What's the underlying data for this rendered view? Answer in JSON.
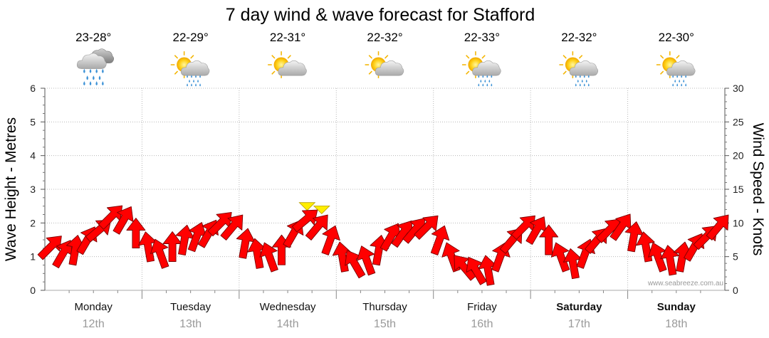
{
  "chart_data": {
    "type": "line",
    "title": "7 day wind & wave forecast for Stafford",
    "ylabel_left": "Wave Height - Metres",
    "ylabel_right": "Wind Speed - Knots",
    "ylim_left": [
      0,
      6
    ],
    "ylim_right": [
      0,
      30
    ],
    "yticks_left": [
      "0",
      "1",
      "2",
      "3",
      "4",
      "5",
      "6"
    ],
    "yticks_right": [
      "0",
      "5",
      "10",
      "15",
      "20",
      "25",
      "30"
    ],
    "watermark": "www.seabreeze.com.au",
    "days": [
      {
        "name": "Monday",
        "date": "12th",
        "bold": false,
        "temp": "23-28°",
        "icon": "rain-cloud-icon"
      },
      {
        "name": "Tuesday",
        "date": "13th",
        "bold": false,
        "temp": "22-29°",
        "icon": "sun-cloud-rain-icon"
      },
      {
        "name": "Wednesday",
        "date": "14th",
        "bold": false,
        "temp": "22-31°",
        "icon": "sun-cloud-icon"
      },
      {
        "name": "Thursday",
        "date": "15th",
        "bold": false,
        "temp": "22-32°",
        "icon": "sun-cloud-icon"
      },
      {
        "name": "Friday",
        "date": "16th",
        "bold": false,
        "temp": "22-33°",
        "icon": "sun-cloud-rain-icon"
      },
      {
        "name": "Saturday",
        "date": "17th",
        "bold": true,
        "temp": "22-32°",
        "icon": "sun-cloud-rain-icon"
      },
      {
        "name": "Sunday",
        "date": "18th",
        "bold": true,
        "temp": "22-30°",
        "icon": "sun-cloud-rain-icon"
      }
    ],
    "series": [
      {
        "name": "Wind Speed (knots)",
        "color": "#ff0000",
        "x": [
          0.0,
          0.125,
          0.25,
          0.375,
          0.5,
          0.625,
          0.75,
          0.875,
          1.0,
          1.125,
          1.25,
          1.375,
          1.5,
          1.625,
          1.75,
          1.875,
          2.0,
          2.125,
          2.25,
          2.375,
          2.5,
          2.625,
          2.75,
          2.875,
          3.0,
          3.125,
          3.25,
          3.375,
          3.5,
          3.625,
          3.75,
          3.875,
          4.0,
          4.125,
          4.25,
          4.375,
          4.5,
          4.625,
          4.75,
          4.875,
          5.0,
          5.125,
          5.25,
          5.375,
          5.5,
          5.625,
          5.75,
          5.875,
          6.0,
          6.125,
          6.25,
          6.375,
          6.5,
          6.625,
          6.75,
          6.875
        ],
        "values": [
          6.5,
          5.5,
          6.0,
          7.5,
          9.0,
          11.0,
          10.5,
          8.5,
          6.5,
          5.5,
          6.5,
          7.5,
          8.0,
          8.5,
          10.0,
          9.5,
          7.0,
          5.5,
          5.0,
          6.0,
          8.5,
          10.5,
          9.5,
          7.5,
          5.0,
          4.0,
          4.5,
          6.0,
          8.0,
          8.5,
          9.0,
          9.5,
          7.5,
          5.0,
          3.5,
          3.0,
          3.0,
          5.0,
          7.5,
          9.5,
          9.0,
          7.5,
          5.0,
          4.0,
          5.5,
          7.5,
          9.0,
          9.5,
          8.0,
          6.5,
          5.0,
          4.5,
          5.0,
          6.5,
          8.0,
          9.5
        ],
        "direction_deg": [
          45,
          60,
          80,
          60,
          40,
          45,
          60,
          90,
          100,
          110,
          90,
          80,
          70,
          60,
          45,
          50,
          80,
          100,
          110,
          90,
          60,
          40,
          50,
          70,
          100,
          120,
          110,
          80,
          60,
          55,
          50,
          45,
          70,
          110,
          130,
          120,
          100,
          70,
          50,
          45,
          60,
          90,
          110,
          100,
          70,
          50,
          45,
          55,
          80,
          100,
          110,
          100,
          80,
          60,
          45,
          50
        ]
      },
      {
        "name": "Wave Height (m)",
        "color": "#ffee00",
        "x": [
          2.7,
          2.85
        ],
        "values": [
          2.5,
          2.4
        ]
      }
    ]
  }
}
